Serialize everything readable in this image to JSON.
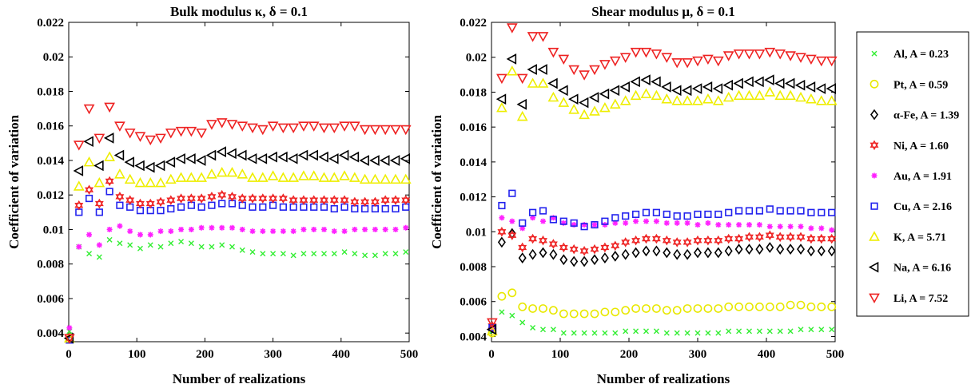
{
  "figure": {
    "xlabel": "Number of realizations",
    "ylabel": "Coefficient of variation"
  },
  "legend": [
    {
      "label": "Al, A = 0.23",
      "marker": "x",
      "color": "#33ee33"
    },
    {
      "label": "Pt, A = 0.59",
      "marker": "circle",
      "color": "#e8e800"
    },
    {
      "label": "α-Fe, A = 1.39",
      "marker": "diamond",
      "color": "#000000"
    },
    {
      "label": "Ni, A = 1.60",
      "marker": "hexagram",
      "color": "#ee2222"
    },
    {
      "label": "Au, A = 1.91",
      "marker": "asterisk",
      "color": "#ff22ff"
    },
    {
      "label": "Cu, A = 2.16",
      "marker": "square",
      "color": "#2222ee"
    },
    {
      "label": "K, A = 5.71",
      "marker": "triangle-up",
      "color": "#eeee00"
    },
    {
      "label": "Na, A = 6.16",
      "marker": "triangle-left",
      "color": "#000000"
    },
    {
      "label": "Li, A = 7.52",
      "marker": "triangle-down",
      "color": "#ee2222"
    }
  ],
  "chart_data": [
    {
      "type": "scatter",
      "title": "Bulk modulus κ, δ = 0.1",
      "xlabel": "Number of realizations",
      "ylabel": "Coefficient of variation",
      "xlim": [
        0,
        500
      ],
      "ylim": [
        0.0035,
        0.022
      ],
      "xticks": [
        "0",
        "100",
        "200",
        "300",
        "400",
        "500"
      ],
      "yticks": [
        "0.004",
        "0.006",
        "0.008",
        "0.01",
        "0.012",
        "0.014",
        "0.016",
        "0.018",
        "0.02",
        "0.022"
      ],
      "grid": false,
      "x": [
        1,
        15,
        30,
        45,
        60,
        75,
        90,
        105,
        120,
        135,
        150,
        165,
        180,
        195,
        210,
        225,
        240,
        255,
        270,
        285,
        300,
        315,
        330,
        345,
        360,
        375,
        390,
        405,
        420,
        435,
        450,
        465,
        480,
        495
      ],
      "series": [
        {
          "name": "Al, A = 0.23",
          "values": [
            0.0041,
            0.009,
            0.0086,
            0.0084,
            0.0094,
            0.0092,
            0.0091,
            0.0089,
            0.0091,
            0.009,
            0.0092,
            0.0093,
            0.0092,
            0.009,
            0.009,
            0.0091,
            0.009,
            0.0088,
            0.0087,
            0.0086,
            0.0086,
            0.0086,
            0.0085,
            0.0086,
            0.0086,
            0.0086,
            0.0086,
            0.0087,
            0.0086,
            0.0085,
            0.0085,
            0.0086,
            0.0086,
            0.0087
          ]
        },
        {
          "name": "Au, A = 1.91",
          "values": [
            0.0043,
            0.009,
            0.0097,
            0.0091,
            0.01,
            0.0102,
            0.0099,
            0.0097,
            0.0097,
            0.0099,
            0.0099,
            0.01,
            0.01,
            0.0101,
            0.0101,
            0.0101,
            0.0101,
            0.01,
            0.0099,
            0.0099,
            0.0099,
            0.0099,
            0.0099,
            0.01,
            0.01,
            0.01,
            0.0099,
            0.0099,
            0.01,
            0.01,
            0.01,
            0.01,
            0.01,
            0.0101
          ]
        },
        {
          "name": "Cu, A = 2.16",
          "values": [
            0.0036,
            0.011,
            0.0118,
            0.011,
            0.0122,
            0.0114,
            0.0113,
            0.0111,
            0.0111,
            0.0111,
            0.0112,
            0.0113,
            0.0114,
            0.0113,
            0.0114,
            0.0115,
            0.0115,
            0.0114,
            0.0113,
            0.0113,
            0.0114,
            0.0113,
            0.0113,
            0.0113,
            0.0113,
            0.0113,
            0.0112,
            0.0113,
            0.0112,
            0.0112,
            0.0112,
            0.0112,
            0.0112,
            0.0113
          ]
        },
        {
          "name": "Ni, A = 1.60",
          "values": [
            0.0037,
            0.0114,
            0.0123,
            0.0115,
            0.0128,
            0.0119,
            0.0117,
            0.0115,
            0.0115,
            0.0116,
            0.0117,
            0.0118,
            0.0118,
            0.0118,
            0.0119,
            0.012,
            0.0119,
            0.0118,
            0.0118,
            0.0118,
            0.0118,
            0.0118,
            0.0117,
            0.0117,
            0.0117,
            0.0117,
            0.0117,
            0.0117,
            0.0116,
            0.0116,
            0.0116,
            0.0117,
            0.0117,
            0.0117
          ]
        },
        {
          "name": "K, A = 5.71",
          "values": [
            0.0037,
            0.0125,
            0.0139,
            0.0127,
            0.0142,
            0.0132,
            0.0129,
            0.0127,
            0.0127,
            0.0127,
            0.0129,
            0.013,
            0.013,
            0.013,
            0.0132,
            0.0133,
            0.0133,
            0.0132,
            0.013,
            0.013,
            0.0131,
            0.013,
            0.013,
            0.0131,
            0.0131,
            0.013,
            0.013,
            0.0131,
            0.013,
            0.0129,
            0.0129,
            0.0129,
            0.0129,
            0.0129
          ]
        },
        {
          "name": "Na, A = 6.16",
          "values": [
            0.0037,
            0.0134,
            0.0151,
            0.0137,
            0.0153,
            0.0143,
            0.0139,
            0.0137,
            0.0136,
            0.0137,
            0.0139,
            0.0141,
            0.0141,
            0.014,
            0.0143,
            0.0145,
            0.0144,
            0.0143,
            0.0141,
            0.0141,
            0.0142,
            0.0142,
            0.0141,
            0.0143,
            0.0143,
            0.0142,
            0.0141,
            0.0143,
            0.0142,
            0.014,
            0.014,
            0.014,
            0.014,
            0.0141
          ]
        },
        {
          "name": "Li, A = 7.52",
          "values": [
            0.0037,
            0.0149,
            0.017,
            0.0153,
            0.0171,
            0.016,
            0.0156,
            0.0154,
            0.0152,
            0.0153,
            0.0156,
            0.0157,
            0.0157,
            0.0156,
            0.0161,
            0.0162,
            0.0161,
            0.016,
            0.0159,
            0.0158,
            0.016,
            0.0159,
            0.0159,
            0.016,
            0.016,
            0.0159,
            0.0159,
            0.016,
            0.016,
            0.0158,
            0.0158,
            0.0158,
            0.0158,
            0.0158
          ]
        }
      ]
    },
    {
      "type": "scatter",
      "title": "Shear modulus μ, δ = 0.1",
      "xlabel": "Number of realizations",
      "ylabel": "Coefficient of variation",
      "xlim": [
        0,
        500
      ],
      "ylim": [
        0.0037,
        0.022
      ],
      "xticks": [
        "0",
        "100",
        "200",
        "300",
        "400",
        "500"
      ],
      "yticks": [
        "0.004",
        "0.006",
        "0.008",
        "0.01",
        "0.012",
        "0.014",
        "0.016",
        "0.018",
        "0.02",
        "0.022"
      ],
      "grid": false,
      "x": [
        1,
        15,
        30,
        45,
        60,
        75,
        90,
        105,
        120,
        135,
        150,
        165,
        180,
        195,
        210,
        225,
        240,
        255,
        270,
        285,
        300,
        315,
        330,
        345,
        360,
        375,
        390,
        405,
        420,
        435,
        450,
        465,
        480,
        495
      ],
      "series": [
        {
          "name": "Al, A = 0.23",
          "values": [
            0.0043,
            0.0054,
            0.0052,
            0.0048,
            0.0045,
            0.0044,
            0.0044,
            0.0042,
            0.0042,
            0.0042,
            0.0042,
            0.0042,
            0.0042,
            0.0043,
            0.0043,
            0.0043,
            0.0043,
            0.0042,
            0.0042,
            0.0042,
            0.0042,
            0.0042,
            0.0042,
            0.0043,
            0.0043,
            0.0043,
            0.0043,
            0.0043,
            0.0043,
            0.0043,
            0.0044,
            0.0044,
            0.0044,
            0.0044
          ]
        },
        {
          "name": "Pt, A = 0.59",
          "values": [
            0.0042,
            0.0063,
            0.0065,
            0.0057,
            0.0056,
            0.0056,
            0.0055,
            0.0053,
            0.0053,
            0.0053,
            0.0053,
            0.0054,
            0.0054,
            0.0055,
            0.0056,
            0.0056,
            0.0056,
            0.0055,
            0.0055,
            0.0056,
            0.0056,
            0.0056,
            0.0056,
            0.0057,
            0.0057,
            0.0057,
            0.0057,
            0.0057,
            0.0057,
            0.0058,
            0.0058,
            0.0057,
            0.0057,
            0.0057
          ]
        },
        {
          "name": "α-Fe, A = 1.39",
          "values": [
            0.0045,
            0.0094,
            0.0099,
            0.0085,
            0.0087,
            0.0088,
            0.0087,
            0.0084,
            0.0083,
            0.0083,
            0.0084,
            0.0085,
            0.0086,
            0.0087,
            0.0088,
            0.0089,
            0.0089,
            0.0088,
            0.0087,
            0.0087,
            0.0088,
            0.0088,
            0.0088,
            0.0089,
            0.009,
            0.009,
            0.009,
            0.0091,
            0.009,
            0.009,
            0.009,
            0.0089,
            0.0089,
            0.0089
          ]
        },
        {
          "name": "Ni, A = 1.60",
          "values": [
            0.0046,
            0.01,
            0.0098,
            0.0091,
            0.0096,
            0.0095,
            0.0093,
            0.0091,
            0.009,
            0.0089,
            0.009,
            0.0091,
            0.0092,
            0.0094,
            0.0095,
            0.0096,
            0.0096,
            0.0095,
            0.0094,
            0.0094,
            0.0095,
            0.0095,
            0.0095,
            0.0096,
            0.0096,
            0.0097,
            0.0097,
            0.0098,
            0.0097,
            0.0097,
            0.0097,
            0.0096,
            0.0096,
            0.0096
          ]
        },
        {
          "name": "Au, A = 1.91",
          "values": [
            0.0044,
            0.0108,
            0.0106,
            0.0102,
            0.0108,
            0.0106,
            0.0108,
            0.0105,
            0.0104,
            0.0104,
            0.0104,
            0.0104,
            0.0105,
            0.0105,
            0.0106,
            0.0106,
            0.0106,
            0.0105,
            0.0105,
            0.0105,
            0.0104,
            0.0105,
            0.0104,
            0.0104,
            0.0104,
            0.0104,
            0.0104,
            0.0103,
            0.0103,
            0.0103,
            0.0103,
            0.0102,
            0.0102,
            0.0101
          ]
        },
        {
          "name": "Cu, A = 2.16",
          "values": [
            0.0045,
            0.0115,
            0.0122,
            0.0105,
            0.0111,
            0.0112,
            0.0107,
            0.0106,
            0.0105,
            0.0103,
            0.0104,
            0.0106,
            0.0108,
            0.0109,
            0.011,
            0.0111,
            0.0111,
            0.011,
            0.0109,
            0.0109,
            0.011,
            0.011,
            0.011,
            0.0111,
            0.0112,
            0.0112,
            0.0112,
            0.0113,
            0.0112,
            0.0112,
            0.0112,
            0.0111,
            0.0111,
            0.0111
          ]
        },
        {
          "name": "K, A = 5.71",
          "values": [
            0.0043,
            0.0171,
            0.0192,
            0.0166,
            0.0185,
            0.0185,
            0.0177,
            0.0174,
            0.017,
            0.0167,
            0.0169,
            0.0171,
            0.0173,
            0.0175,
            0.0178,
            0.0179,
            0.0178,
            0.0176,
            0.0175,
            0.0175,
            0.0175,
            0.0176,
            0.0175,
            0.0177,
            0.0178,
            0.0178,
            0.0178,
            0.018,
            0.0178,
            0.0178,
            0.0177,
            0.0176,
            0.0175,
            0.0175
          ]
        },
        {
          "name": "Na, A = 6.16",
          "values": [
            0.0044,
            0.0176,
            0.0199,
            0.0173,
            0.0193,
            0.0193,
            0.0185,
            0.0181,
            0.0176,
            0.0174,
            0.0177,
            0.0179,
            0.0181,
            0.0183,
            0.0186,
            0.0187,
            0.0186,
            0.0183,
            0.0181,
            0.0181,
            0.0182,
            0.0183,
            0.0182,
            0.0184,
            0.0185,
            0.0186,
            0.0186,
            0.0187,
            0.0185,
            0.0185,
            0.0184,
            0.0183,
            0.0182,
            0.0182
          ]
        },
        {
          "name": "Li, A = 7.52",
          "values": [
            0.0048,
            0.0188,
            0.0217,
            0.0188,
            0.0212,
            0.0212,
            0.0203,
            0.0199,
            0.0193,
            0.019,
            0.0193,
            0.0196,
            0.0198,
            0.02,
            0.0203,
            0.0203,
            0.0202,
            0.02,
            0.0197,
            0.0197,
            0.0198,
            0.0199,
            0.0198,
            0.0201,
            0.0202,
            0.0202,
            0.0202,
            0.0203,
            0.0202,
            0.0201,
            0.02,
            0.0199,
            0.0198,
            0.0198
          ]
        }
      ]
    }
  ]
}
